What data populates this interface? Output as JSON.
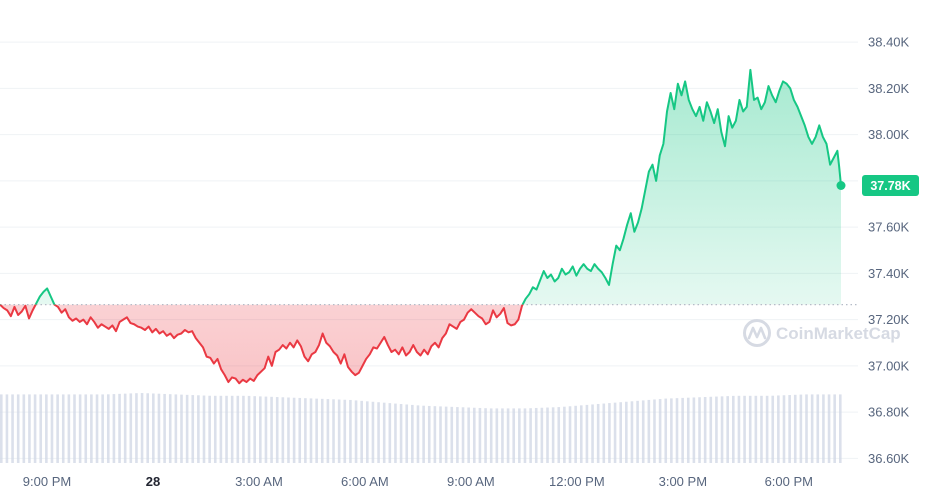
{
  "colors": {
    "up": "#16c784",
    "down": "#ea3943",
    "grid": "#eff2f5",
    "baseline": "#b5bcc8",
    "volume": "#cfd6e4",
    "text": "#58667e",
    "watermark": "#d6dae3"
  },
  "watermark": {
    "text": "CoinMarketCap",
    "icon": "coinmarketcap-logo-icon"
  },
  "current_price": {
    "label": "37.78K",
    "value": 37780
  },
  "chart_data": {
    "type": "line",
    "title": "",
    "xlabel": "",
    "ylabel": "",
    "ylim": [
      36500,
      38500
    ],
    "y_ticks": [
      {
        "value": 38400,
        "label": "38.40K"
      },
      {
        "value": 38200,
        "label": "38.20K"
      },
      {
        "value": 38000,
        "label": "38.00K"
      },
      {
        "value": 37800,
        "label": "37.80K"
      },
      {
        "value": 37600,
        "label": "37.60K"
      },
      {
        "value": 37400,
        "label": "37.40K"
      },
      {
        "value": 37200,
        "label": "37.20K"
      },
      {
        "value": 37000,
        "label": "37.00K"
      },
      {
        "value": 36800,
        "label": "36.80K"
      },
      {
        "value": 36600,
        "label": "36.60K"
      }
    ],
    "x_range_hours": [
      -3.9,
      19.3
    ],
    "x_ticks": [
      {
        "t": -3,
        "label": "9:00 PM",
        "bold": false
      },
      {
        "t": 0,
        "label": "28",
        "bold": true
      },
      {
        "t": 3,
        "label": "3:00 AM",
        "bold": false
      },
      {
        "t": 6,
        "label": "6:00 AM",
        "bold": false
      },
      {
        "t": 9,
        "label": "9:00 AM",
        "bold": false
      },
      {
        "t": 12,
        "label": "12:00 PM",
        "bold": false
      },
      {
        "t": 15,
        "label": "3:00 PM",
        "bold": false
      },
      {
        "t": 18,
        "label": "6:00 PM",
        "bold": false
      }
    ],
    "baseline_price": 37265,
    "price_series": {
      "name": "Price",
      "points": [
        [
          -3.9,
          37265
        ],
        [
          -3.8,
          37250
        ],
        [
          -3.7,
          37240
        ],
        [
          -3.6,
          37215
        ],
        [
          -3.5,
          37255
        ],
        [
          -3.4,
          37220
        ],
        [
          -3.3,
          37235
        ],
        [
          -3.2,
          37260
        ],
        [
          -3.1,
          37205
        ],
        [
          -3.0,
          37240
        ],
        [
          -2.9,
          37270
        ],
        [
          -2.8,
          37300
        ],
        [
          -2.7,
          37320
        ],
        [
          -2.6,
          37335
        ],
        [
          -2.5,
          37300
        ],
        [
          -2.4,
          37265
        ],
        [
          -2.3,
          37255
        ],
        [
          -2.2,
          37230
        ],
        [
          -2.1,
          37245
        ],
        [
          -2.0,
          37210
        ],
        [
          -1.9,
          37195
        ],
        [
          -1.8,
          37205
        ],
        [
          -1.7,
          37190
        ],
        [
          -1.6,
          37200
        ],
        [
          -1.5,
          37180
        ],
        [
          -1.4,
          37210
        ],
        [
          -1.3,
          37190
        ],
        [
          -1.2,
          37165
        ],
        [
          -1.1,
          37180
        ],
        [
          -1.0,
          37170
        ],
        [
          -0.9,
          37160
        ],
        [
          -0.8,
          37175
        ],
        [
          -0.7,
          37150
        ],
        [
          -0.6,
          37190
        ],
        [
          -0.5,
          37200
        ],
        [
          -0.4,
          37210
        ],
        [
          -0.3,
          37185
        ],
        [
          -0.2,
          37180
        ],
        [
          -0.1,
          37170
        ],
        [
          0.0,
          37165
        ],
        [
          0.1,
          37155
        ],
        [
          0.2,
          37170
        ],
        [
          0.3,
          37145
        ],
        [
          0.4,
          37160
        ],
        [
          0.5,
          37140
        ],
        [
          0.6,
          37150
        ],
        [
          0.7,
          37130
        ],
        [
          0.8,
          37140
        ],
        [
          0.9,
          37120
        ],
        [
          1.0,
          37135
        ],
        [
          1.1,
          37140
        ],
        [
          1.2,
          37155
        ],
        [
          1.3,
          37145
        ],
        [
          1.4,
          37150
        ],
        [
          1.5,
          37120
        ],
        [
          1.6,
          37100
        ],
        [
          1.7,
          37080
        ],
        [
          1.8,
          37040
        ],
        [
          1.9,
          37035
        ],
        [
          2.0,
          37010
        ],
        [
          2.1,
          37030
        ],
        [
          2.2,
          36985
        ],
        [
          2.3,
          36960
        ],
        [
          2.4,
          36930
        ],
        [
          2.5,
          36950
        ],
        [
          2.6,
          36945
        ],
        [
          2.7,
          36925
        ],
        [
          2.8,
          36940
        ],
        [
          2.9,
          36930
        ],
        [
          3.0,
          36945
        ],
        [
          3.1,
          36935
        ],
        [
          3.2,
          36960
        ],
        [
          3.3,
          36975
        ],
        [
          3.4,
          36990
        ],
        [
          3.5,
          37040
        ],
        [
          3.6,
          37000
        ],
        [
          3.7,
          37060
        ],
        [
          3.8,
          37070
        ],
        [
          3.9,
          37090
        ],
        [
          4.0,
          37075
        ],
        [
          4.1,
          37100
        ],
        [
          4.2,
          37080
        ],
        [
          4.3,
          37110
        ],
        [
          4.4,
          37085
        ],
        [
          4.5,
          37040
        ],
        [
          4.6,
          37020
        ],
        [
          4.7,
          37050
        ],
        [
          4.8,
          37060
        ],
        [
          4.9,
          37090
        ],
        [
          5.0,
          37140
        ],
        [
          5.1,
          37100
        ],
        [
          5.2,
          37085
        ],
        [
          5.3,
          37060
        ],
        [
          5.4,
          37045
        ],
        [
          5.5,
          37010
        ],
        [
          5.6,
          37050
        ],
        [
          5.7,
          36995
        ],
        [
          5.8,
          36975
        ],
        [
          5.9,
          36960
        ],
        [
          6.0,
          36970
        ],
        [
          6.1,
          37000
        ],
        [
          6.2,
          37030
        ],
        [
          6.3,
          37050
        ],
        [
          6.4,
          37080
        ],
        [
          6.5,
          37075
        ],
        [
          6.6,
          37100
        ],
        [
          6.7,
          37125
        ],
        [
          6.8,
          37090
        ],
        [
          6.9,
          37060
        ],
        [
          7.0,
          37070
        ],
        [
          7.1,
          37050
        ],
        [
          7.2,
          37080
        ],
        [
          7.3,
          37045
        ],
        [
          7.4,
          37060
        ],
        [
          7.5,
          37090
        ],
        [
          7.6,
          37060
        ],
        [
          7.7,
          37045
        ],
        [
          7.8,
          37070
        ],
        [
          7.9,
          37050
        ],
        [
          8.0,
          37085
        ],
        [
          8.1,
          37100
        ],
        [
          8.2,
          37080
        ],
        [
          8.3,
          37120
        ],
        [
          8.4,
          37140
        ],
        [
          8.5,
          37180
        ],
        [
          8.6,
          37170
        ],
        [
          8.7,
          37160
        ],
        [
          8.8,
          37190
        ],
        [
          8.9,
          37200
        ],
        [
          9.0,
          37230
        ],
        [
          9.1,
          37245
        ],
        [
          9.2,
          37230
        ],
        [
          9.3,
          37215
        ],
        [
          9.4,
          37205
        ],
        [
          9.5,
          37180
        ],
        [
          9.6,
          37190
        ],
        [
          9.7,
          37240
        ],
        [
          9.8,
          37210
        ],
        [
          9.9,
          37225
        ],
        [
          10.0,
          37250
        ],
        [
          10.1,
          37185
        ],
        [
          10.2,
          37175
        ],
        [
          10.3,
          37180
        ],
        [
          10.4,
          37200
        ],
        [
          10.5,
          37260
        ],
        [
          10.6,
          37290
        ],
        [
          10.7,
          37310
        ],
        [
          10.8,
          37340
        ],
        [
          10.9,
          37330
        ],
        [
          11.0,
          37370
        ],
        [
          11.1,
          37410
        ],
        [
          11.2,
          37380
        ],
        [
          11.3,
          37395
        ],
        [
          11.4,
          37365
        ],
        [
          11.5,
          37380
        ],
        [
          11.6,
          37420
        ],
        [
          11.7,
          37395
        ],
        [
          11.8,
          37405
        ],
        [
          11.9,
          37430
        ],
        [
          12.0,
          37390
        ],
        [
          12.1,
          37420
        ],
        [
          12.2,
          37440
        ],
        [
          12.3,
          37420
        ],
        [
          12.4,
          37410
        ],
        [
          12.5,
          37440
        ],
        [
          12.6,
          37420
        ],
        [
          12.7,
          37405
        ],
        [
          12.8,
          37380
        ],
        [
          12.9,
          37350
        ],
        [
          13.0,
          37440
        ],
        [
          13.1,
          37520
        ],
        [
          13.2,
          37500
        ],
        [
          13.3,
          37550
        ],
        [
          13.4,
          37610
        ],
        [
          13.5,
          37660
        ],
        [
          13.6,
          37580
        ],
        [
          13.7,
          37620
        ],
        [
          13.8,
          37680
        ],
        [
          13.9,
          37760
        ],
        [
          14.0,
          37840
        ],
        [
          14.1,
          37870
        ],
        [
          14.2,
          37800
        ],
        [
          14.3,
          37910
        ],
        [
          14.4,
          37960
        ],
        [
          14.5,
          38100
        ],
        [
          14.6,
          38180
        ],
        [
          14.7,
          38110
        ],
        [
          14.8,
          38220
        ],
        [
          14.9,
          38170
        ],
        [
          15.0,
          38230
        ],
        [
          15.1,
          38150
        ],
        [
          15.2,
          38110
        ],
        [
          15.3,
          38080
        ],
        [
          15.4,
          38120
        ],
        [
          15.5,
          38060
        ],
        [
          15.6,
          38140
        ],
        [
          15.7,
          38100
        ],
        [
          15.8,
          38050
        ],
        [
          15.9,
          38110
        ],
        [
          16.0,
          38010
        ],
        [
          16.1,
          37950
        ],
        [
          16.2,
          38080
        ],
        [
          16.3,
          38030
        ],
        [
          16.4,
          38060
        ],
        [
          16.5,
          38150
        ],
        [
          16.6,
          38100
        ],
        [
          16.7,
          38120
        ],
        [
          16.8,
          38280
        ],
        [
          16.9,
          38150
        ],
        [
          17.0,
          38160
        ],
        [
          17.1,
          38110
        ],
        [
          17.2,
          38140
        ],
        [
          17.3,
          38210
        ],
        [
          17.4,
          38170
        ],
        [
          17.5,
          38140
        ],
        [
          17.6,
          38190
        ],
        [
          17.7,
          38230
        ],
        [
          17.8,
          38220
        ],
        [
          17.9,
          38200
        ],
        [
          18.0,
          38150
        ],
        [
          18.1,
          38120
        ],
        [
          18.2,
          38080
        ],
        [
          18.3,
          38040
        ],
        [
          18.4,
          37990
        ],
        [
          18.5,
          37960
        ],
        [
          18.6,
          37990
        ],
        [
          18.7,
          38040
        ],
        [
          18.8,
          37990
        ],
        [
          18.9,
          37960
        ],
        [
          19.0,
          37870
        ],
        [
          19.1,
          37900
        ],
        [
          19.2,
          37930
        ],
        [
          19.25,
          37860
        ],
        [
          19.3,
          37780
        ]
      ]
    },
    "volume_series": {
      "name": "Volume",
      "relative_values": [
        0.49,
        0.49,
        0.49,
        0.49,
        0.5,
        0.49,
        0.48,
        0.48,
        0.47,
        0.46,
        0.45,
        0.43,
        0.41,
        0.4,
        0.39,
        0.39,
        0.4,
        0.42,
        0.44,
        0.46,
        0.47,
        0.48,
        0.48,
        0.49,
        0.49
      ]
    }
  }
}
